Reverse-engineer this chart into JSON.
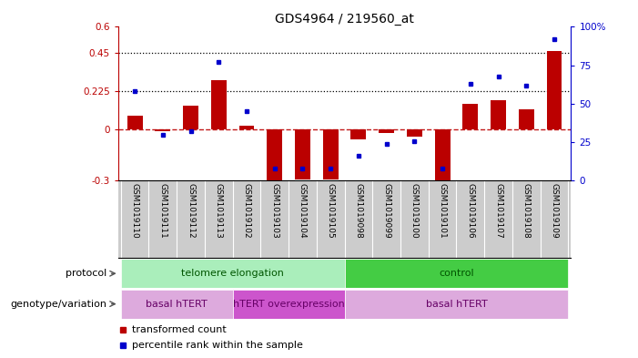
{
  "title": "GDS4964 / 219560_at",
  "samples": [
    "GSM1019110",
    "GSM1019111",
    "GSM1019112",
    "GSM1019113",
    "GSM1019102",
    "GSM1019103",
    "GSM1019104",
    "GSM1019105",
    "GSM1019098",
    "GSM1019099",
    "GSM1019100",
    "GSM1019101",
    "GSM1019106",
    "GSM1019107",
    "GSM1019108",
    "GSM1019109"
  ],
  "transformed_count": [
    0.08,
    -0.01,
    0.14,
    0.29,
    0.02,
    -0.32,
    -0.29,
    -0.29,
    -0.06,
    -0.02,
    -0.04,
    -0.3,
    0.15,
    0.17,
    0.12,
    0.46
  ],
  "percentile_rank": [
    58,
    30,
    32,
    77,
    45,
    8,
    8,
    8,
    16,
    24,
    26,
    8,
    63,
    68,
    62,
    92
  ],
  "ylim_left": [
    -0.3,
    0.6
  ],
  "ylim_right": [
    0,
    100
  ],
  "yticks_left": [
    -0.3,
    0.0,
    0.225,
    0.45,
    0.6
  ],
  "yticks_right": [
    0,
    25,
    50,
    75,
    100
  ],
  "ytick_labels_left": [
    "-0.3",
    "0",
    "0.225",
    "0.45",
    "0.6"
  ],
  "ytick_labels_right": [
    "0",
    "25",
    "50",
    "75",
    "100%"
  ],
  "hline_dotted": [
    0.225,
    0.45
  ],
  "hline_dashed": 0.0,
  "bar_color": "#bb0000",
  "dot_color": "#0000cc",
  "protocol_groups": [
    {
      "label": "telomere elongation",
      "start": 0,
      "end": 8,
      "color": "#aaeebb"
    },
    {
      "label": "control",
      "start": 8,
      "end": 16,
      "color": "#44cc44"
    }
  ],
  "genotype_groups": [
    {
      "label": "basal hTERT",
      "start": 0,
      "end": 4,
      "color": "#ddaadd"
    },
    {
      "label": "hTERT overexpression",
      "start": 4,
      "end": 8,
      "color": "#cc55cc"
    },
    {
      "label": "basal hTERT",
      "start": 8,
      "end": 16,
      "color": "#ddaadd"
    }
  ],
  "protocol_label": "protocol",
  "genotype_label": "genotype/variation",
  "legend_items": [
    "transformed count",
    "percentile rank within the sample"
  ],
  "bg_color": "#ffffff",
  "tick_area_color": "#cccccc",
  "tick_area_border_color": "#aaaaaa"
}
